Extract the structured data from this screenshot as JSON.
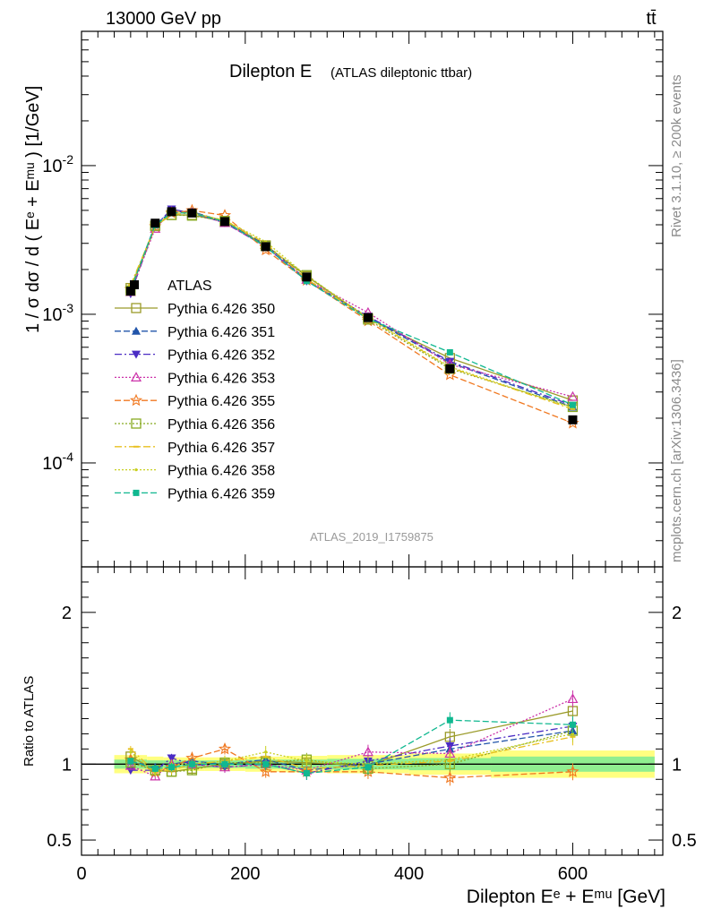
{
  "header": {
    "energy_label": "13000 GeV pp",
    "process_label": "tt̄",
    "side_top": "Rivet 3.1.10, ≥ 200k events",
    "side_bottom": "mcplots.cern.ch [arXiv:1306.3436]"
  },
  "chart_data": {
    "type": "line",
    "title": "Dilepton E",
    "subtitle": "(ATLAS dileptonic ttbar)",
    "analysis_label": "ATLAS_2019_I1759875",
    "xlabel": "Dilepton Eᵉ + Eᵐᵘ [GeV]",
    "ylabel": "1 / σ dσ / d ( Eᵉ + Eᵐᵘ ) [1/GeV]",
    "ratio_ylabel": "Ratio to ATLAS",
    "xlim": [
      0,
      710
    ],
    "ylim": [
      2e-05,
      0.08
    ],
    "yscale": "log",
    "ratio_ylim": [
      0.4,
      2.3
    ],
    "x_ticks": [
      "0",
      "200",
      "400",
      "600"
    ],
    "y_ticks": [
      "10^-4",
      "10^-3",
      "10^-2"
    ],
    "ratio_ticks": [
      "0.5",
      "1",
      "2"
    ],
    "x": [
      60,
      90,
      110,
      135,
      175,
      225,
      275,
      350,
      450,
      600
    ],
    "bin_edges": [
      40,
      80,
      100,
      120,
      150,
      200,
      250,
      300,
      400,
      500,
      700
    ],
    "data": {
      "name": "ATLAS",
      "values": [
        0.00143,
        0.0041,
        0.0049,
        0.0048,
        0.0042,
        0.00285,
        0.00178,
        0.00095,
        0.00043,
        0.000195
      ],
      "ratio_band_inner": [
        0.03,
        0.025,
        0.025,
        0.025,
        0.025,
        0.03,
        0.03,
        0.035,
        0.04,
        0.05
      ],
      "ratio_band_outer": [
        0.06,
        0.05,
        0.045,
        0.045,
        0.045,
        0.05,
        0.055,
        0.06,
        0.07,
        0.09
      ]
    },
    "series": [
      {
        "name": "Pythia 6.426 350",
        "color": "#9b9b2a",
        "dash": "",
        "marker": "square-open",
        "ratio": [
          1.05,
          0.96,
          0.95,
          0.97,
          1.0,
          1.02,
          1.01,
          0.99,
          1.18,
          1.35
        ]
      },
      {
        "name": "Pythia 6.426 351",
        "color": "#2255aa",
        "dash": "7,3",
        "marker": "triangle-up",
        "ratio": [
          1.02,
          0.98,
          1.0,
          1.02,
          1.0,
          1.03,
          0.96,
          1.0,
          1.1,
          1.22
        ]
      },
      {
        "name": "Pythia 6.426 352",
        "color": "#4a2cc4",
        "dash": "8,3,2,3",
        "marker": "triangle-down",
        "ratio": [
          0.96,
          0.96,
          1.04,
          1.0,
          0.98,
          1.0,
          0.94,
          1.02,
          1.12,
          1.25
        ]
      },
      {
        "name": "Pythia 6.426 353",
        "color": "#cc33aa",
        "dash": "2,2",
        "marker": "triangle-open",
        "ratio": [
          0.99,
          0.92,
          1.0,
          1.0,
          0.98,
          1.0,
          0.96,
          1.08,
          1.07,
          1.43
        ]
      },
      {
        "name": "Pythia 6.426 355",
        "color": "#f07820",
        "dash": "7,3",
        "marker": "star",
        "ratio": [
          1.03,
          0.95,
          0.98,
          1.04,
          1.1,
          0.95,
          0.95,
          0.95,
          0.91,
          0.95
        ]
      },
      {
        "name": "Pythia 6.426 356",
        "color": "#88aa22",
        "dash": "2,2",
        "marker": "square-open",
        "ratio": [
          1.01,
          0.96,
          0.95,
          0.96,
          1.01,
          1.01,
          1.03,
          0.97,
          1.0,
          1.22
        ]
      },
      {
        "name": "Pythia 6.426 357",
        "color": "#e8c020",
        "dash": "8,3,2,3",
        "marker": "dash",
        "ratio": [
          1.1,
          0.95,
          0.96,
          1.0,
          1.02,
          1.05,
          0.97,
          0.99,
          1.02,
          1.18
        ]
      },
      {
        "name": "Pythia 6.426 358",
        "color": "#c8d020",
        "dash": "2,2",
        "marker": "dot",
        "ratio": [
          1.08,
          0.94,
          1.0,
          1.0,
          1.02,
          1.08,
          1.02,
          1.0,
          1.03,
          1.2
        ]
      },
      {
        "name": "Pythia 6.426 359",
        "color": "#10b890",
        "dash": "7,3",
        "marker": "square",
        "ratio": [
          1.02,
          0.97,
          0.98,
          1.0,
          1.0,
          1.0,
          0.94,
          0.98,
          1.29,
          1.26
        ]
      }
    ]
  }
}
